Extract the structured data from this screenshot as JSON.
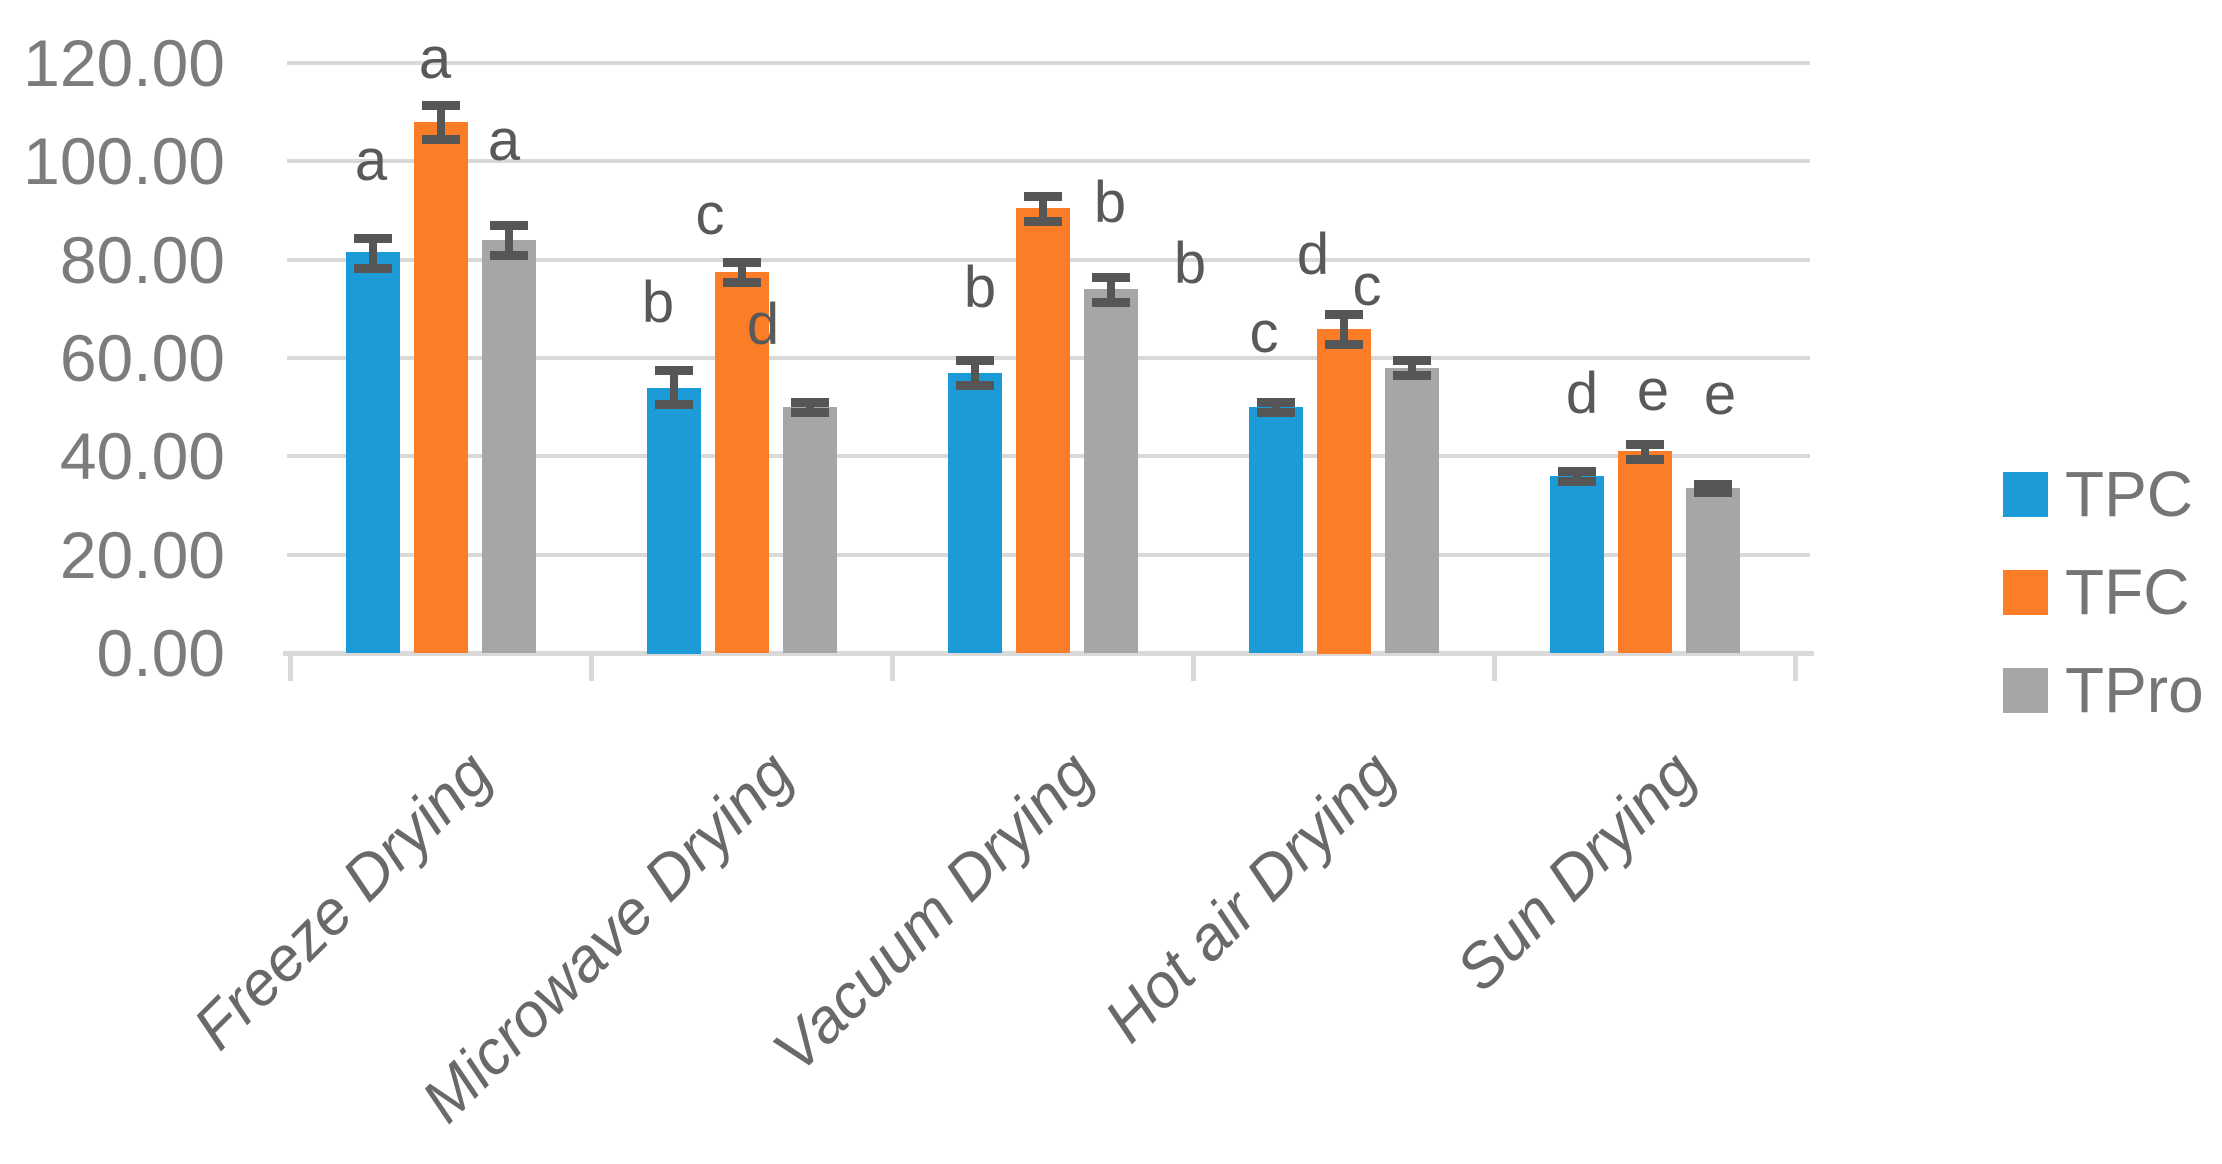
{
  "chart_data": {
    "type": "bar",
    "title": "",
    "xlabel": "",
    "ylabel": "",
    "categories": [
      "Freeze Drying",
      "Microwave Drying",
      "Vacuum Drying",
      "Hot air Drying",
      "Sun Drying"
    ],
    "series": [
      {
        "name": "TPC",
        "color": "#1d9bd8",
        "values": [
          81.5,
          54,
          57,
          50,
          36
        ],
        "errors": [
          3,
          3.5,
          2.5,
          1,
          1
        ],
        "letters": [
          {
            "text": "a",
            "dx": -2,
            "gap": 48
          },
          {
            "text": "b",
            "dx": -16,
            "gap": 38
          },
          {
            "text": "b",
            "dx": 5,
            "gap": 43
          },
          {
            "text": "c",
            "dx": -12,
            "gap": 40
          },
          {
            "text": "d",
            "dx": 5,
            "gap": 48
          }
        ]
      },
      {
        "name": "TFC",
        "color": "#fb7d27",
        "values": [
          108,
          77.5,
          90.5,
          66,
          41
        ],
        "errors": [
          3.5,
          2,
          2.5,
          3,
          1.5
        ],
        "letters": [
          {
            "text": "a",
            "dx": -6,
            "gap": 17
          },
          {
            "text": "c",
            "dx": -32,
            "gap": 18
          },
          {
            "text": "b",
            "dx": 67,
            "gap": -36
          },
          {
            "text": "d",
            "dx": -31,
            "gap": 30
          },
          {
            "text": "e",
            "dx": 8,
            "gap": 24
          }
        ]
      },
      {
        "name": "TPro",
        "color": "#a6a6a6",
        "values": [
          84,
          50,
          74,
          58,
          33.5
        ],
        "errors": [
          3,
          1,
          2.5,
          1.5,
          0.8
        ],
        "letters": [
          {
            "text": "a",
            "dx": -5,
            "gap": 55
          },
          {
            "text": "d",
            "dx": -47,
            "gap": 48
          },
          {
            "text": "b",
            "dx": 79,
            "gap": -16
          },
          {
            "text": "c",
            "dx": -45,
            "gap": 45
          },
          {
            "text": "e",
            "dx": 7,
            "gap": 60
          }
        ]
      }
    ],
    "ylim": [
      0,
      120
    ],
    "y_tick_step": 20,
    "y_tick_labels": [
      "0.00",
      "20.00",
      "40.00",
      "60.00",
      "80.00",
      "100.00",
      "120.00"
    ],
    "grid": "horizontal",
    "legend_position": "right",
    "legend_labels": [
      "TPC",
      "TFC",
      "TPro"
    ],
    "colors": {
      "tpc_blue": "#1d9bd8",
      "tfc_orange": "#fb7d27",
      "tpro_gray": "#a6a6a6",
      "error_bar": "#565656",
      "letter_text": "#595959",
      "gridline": "#d9d9d9",
      "axis_text": "#7c7c7c",
      "category_text": "#696969",
      "legend_text": "#757575"
    }
  }
}
